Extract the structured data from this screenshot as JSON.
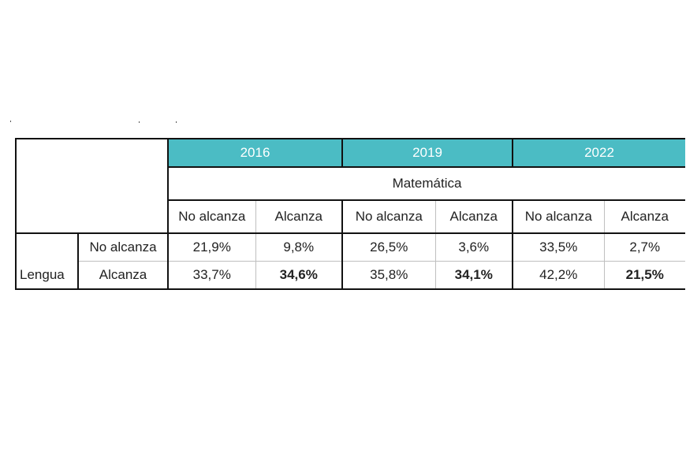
{
  "colors": {
    "header_fill": "#4bbcc4",
    "header_text": "#ffffff",
    "border": "#111111",
    "inner_border": "#bfbfbf"
  },
  "table": {
    "years": [
      "2016",
      "2019",
      "2022"
    ],
    "column_subject": "Matemática",
    "column_levels": [
      "No alcanza",
      "Alcanza"
    ],
    "row_subject": "Lengua",
    "rows": [
      {
        "label": "No alcanza",
        "cells": [
          "21,9%",
          "9,8%",
          "26,5%",
          "3,6%",
          "33,5%",
          "2,7%"
        ]
      },
      {
        "label": "Alcanza",
        "cells": [
          "33,7%",
          "34,6%",
          "35,8%",
          "34,1%",
          "42,2%",
          "21,5%"
        ]
      }
    ]
  },
  "chart_data": {
    "type": "table",
    "title": "",
    "row_dimension": "Lengua",
    "column_dimension": "Matemática",
    "years": [
      "2016",
      "2019",
      "2022"
    ],
    "row_categories": [
      "No alcanza",
      "Alcanza"
    ],
    "column_categories": [
      "No alcanza",
      "Alcanza"
    ],
    "values_percent": {
      "2016": [
        [
          21.9,
          9.8
        ],
        [
          33.7,
          34.6
        ]
      ],
      "2019": [
        [
          26.5,
          3.6
        ],
        [
          35.8,
          34.1
        ]
      ],
      "2022": [
        [
          33.5,
          2.7
        ],
        [
          42.2,
          21.5
        ]
      ]
    },
    "highlighted": [
      "2016 Alcanza/Alcanza",
      "2019 Alcanza/Alcanza",
      "2022 Alcanza/Alcanza"
    ]
  }
}
